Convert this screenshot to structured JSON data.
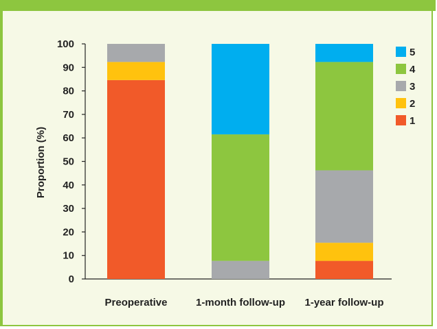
{
  "colors": {
    "frame_accent": "#8dc63f",
    "background": "#f6f9e6"
  },
  "chart_data": {
    "type": "bar",
    "stacked": true,
    "ylabel": "Proportion (%)",
    "xlabel": "",
    "ylim": [
      0,
      100
    ],
    "yticks": [
      0,
      10,
      20,
      30,
      40,
      50,
      60,
      70,
      80,
      90,
      100
    ],
    "categories": [
      "Preoperative",
      "1-month follow-up",
      "1-year follow-up"
    ],
    "series": [
      {
        "name": "1",
        "color": "#f15a29",
        "values": [
          84.6,
          0,
          7.7
        ]
      },
      {
        "name": "2",
        "color": "#ffc20e",
        "values": [
          7.7,
          0,
          7.7
        ]
      },
      {
        "name": "3",
        "color": "#a7a9ac",
        "values": [
          7.7,
          7.7,
          30.8
        ]
      },
      {
        "name": "4",
        "color": "#8dc63f",
        "values": [
          0,
          53.8,
          46.1
        ]
      },
      {
        "name": "5",
        "color": "#00aeef",
        "values": [
          0,
          38.5,
          7.7
        ]
      }
    ],
    "legend_order": [
      "5",
      "4",
      "3",
      "2",
      "1"
    ],
    "legend_position": "top-right",
    "grid": false
  }
}
